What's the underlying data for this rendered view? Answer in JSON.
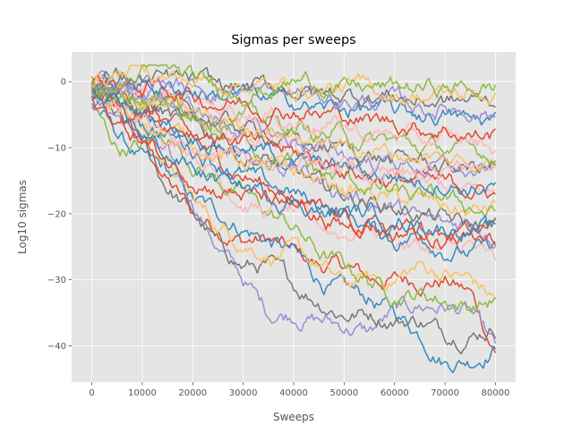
{
  "chart_data": {
    "type": "line",
    "title": "Sigmas per sweeps",
    "xlabel": "Sweeps",
    "ylabel": "Log10 sigmas",
    "xlim": [
      -4000,
      84000
    ],
    "ylim": [
      -45.5,
      4.5
    ],
    "x_ticks": [
      0,
      10000,
      20000,
      30000,
      40000,
      50000,
      60000,
      70000,
      80000
    ],
    "x_tick_labels": [
      "0",
      "10000",
      "20000",
      "30000",
      "40000",
      "50000",
      "60000",
      "70000",
      "80000"
    ],
    "y_ticks": [
      0,
      -10,
      -20,
      -30,
      -40
    ],
    "y_tick_labels": [
      "0",
      "−10",
      "−20",
      "−30",
      "−40"
    ],
    "grid": true,
    "style": "ggplot",
    "colors": [
      "#E24A33",
      "#348ABD",
      "#988ED5",
      "#777777",
      "#FBC15E",
      "#8EBA42",
      "#FFB5B8"
    ],
    "x": [
      0,
      5000,
      10000,
      15000,
      20000,
      25000,
      30000,
      35000,
      40000,
      45000,
      50000,
      55000,
      60000,
      65000,
      70000,
      75000,
      80000
    ],
    "series": [
      {
        "values": [
          -2,
          -5,
          -9,
          -15,
          -20,
          -22,
          -24,
          -24,
          -26,
          -28,
          -28,
          -30,
          -30,
          -30,
          -30,
          -32,
          -41
        ]
      },
      {
        "values": [
          -3,
          -8,
          -12,
          -14,
          -18,
          -20,
          -22,
          -24,
          -26,
          -30,
          -32,
          -33,
          -35,
          -38,
          -42,
          -42,
          -40
        ]
      },
      {
        "values": [
          -3,
          -5,
          -8,
          -12,
          -18,
          -25,
          -30,
          -35,
          -35,
          -36,
          -37,
          -38,
          -35,
          -34,
          -34,
          -35,
          -41
        ]
      },
      {
        "values": [
          -2,
          -6,
          -10,
          -16,
          -20,
          -25,
          -28,
          -28,
          -31,
          -33,
          -35,
          -35,
          -36,
          -36,
          -38,
          -38,
          -37
        ]
      },
      {
        "values": [
          -1,
          -3,
          -7,
          -12,
          -18,
          -22,
          -24,
          -26,
          -26,
          -28,
          -31,
          -30,
          -30,
          -28,
          -29,
          -30,
          -33
        ]
      },
      {
        "values": [
          -4,
          -10,
          -10,
          -8,
          -12,
          -15,
          -17,
          -20,
          -22,
          -26,
          -28,
          -30,
          -32,
          -32,
          -33,
          -34,
          -33
        ]
      },
      {
        "values": [
          -2,
          -4,
          -5,
          -8,
          -10,
          -14,
          -18,
          -20,
          -20,
          -22,
          -23,
          -22,
          -24,
          -25,
          -26,
          -25,
          -28
        ]
      },
      {
        "values": [
          -1,
          -2,
          -4,
          -6,
          -9,
          -12,
          -14,
          -16,
          -18,
          -20,
          -22,
          -21,
          -23,
          -22,
          -24,
          -23,
          -22
        ]
      },
      {
        "values": [
          -1,
          -3,
          -6,
          -8,
          -10,
          -12,
          -14,
          -16,
          -17,
          -19,
          -20,
          -22,
          -24,
          -23,
          -25,
          -26,
          -25
        ]
      },
      {
        "values": [
          0,
          -1,
          -2,
          -4,
          -6,
          -8,
          -10,
          -12,
          -13,
          -15,
          -17,
          -18,
          -19,
          -21,
          -22,
          -21,
          -23
        ]
      },
      {
        "values": [
          -1,
          -2,
          -3,
          -5,
          -7,
          -9,
          -11,
          -12,
          -14,
          -16,
          -17,
          -18,
          -19,
          -20,
          -21,
          -22,
          -22
        ]
      },
      {
        "values": [
          -2,
          -4,
          -6,
          -7,
          -9,
          -11,
          -12,
          -13,
          -14,
          -15,
          -16,
          -17,
          -18,
          -18,
          -19,
          -20,
          -19
        ]
      },
      {
        "values": [
          -1,
          -2,
          -4,
          -5,
          -7,
          -8,
          -9,
          -11,
          -12,
          -14,
          -15,
          -16,
          -17,
          -18,
          -18,
          -19,
          -20
        ]
      },
      {
        "values": [
          0,
          -1,
          -2,
          -3,
          -5,
          -7,
          -8,
          -10,
          -11,
          -12,
          -13,
          -14,
          -15,
          -16,
          -16,
          -17,
          -17
        ]
      },
      {
        "values": [
          -1,
          -3,
          -4,
          -6,
          -7,
          -8,
          -9,
          -10,
          -11,
          -12,
          -13,
          -14,
          -15,
          -15,
          -16,
          -16,
          -17
        ]
      },
      {
        "values": [
          -2,
          -3,
          -5,
          -6,
          -8,
          -9,
          -10,
          -11,
          -12,
          -13,
          -13,
          -14,
          -14,
          -15,
          -15,
          -16,
          -16
        ]
      },
      {
        "values": [
          0,
          -1,
          -2,
          -3,
          -4,
          -6,
          -7,
          -8,
          -9,
          -10,
          -11,
          -12,
          -12,
          -13,
          -13,
          -14,
          -14
        ]
      },
      {
        "values": [
          -1,
          -2,
          -3,
          -4,
          -5,
          -6,
          -7,
          -8,
          -9,
          -10,
          -10,
          -11,
          -12,
          -12,
          -13,
          -13,
          -13
        ]
      },
      {
        "values": [
          -1,
          -2,
          -3,
          -4,
          -5,
          -6,
          -6,
          -7,
          -8,
          -9,
          -10,
          -10,
          -11,
          -11,
          -12,
          -12,
          -12
        ]
      },
      {
        "values": [
          0,
          -1,
          -2,
          -3,
          -4,
          -5,
          -5,
          -6,
          -7,
          -8,
          -8,
          -9,
          -9,
          -10,
          -10,
          -11,
          -11
        ]
      },
      {
        "values": [
          0,
          0,
          -1,
          -2,
          -3,
          -4,
          -4,
          -5,
          -6,
          -6,
          -7,
          -8,
          -8,
          -9,
          -9,
          -9,
          -10
        ]
      },
      {
        "values": [
          0,
          0,
          -1,
          -1,
          -2,
          -3,
          -3,
          -4,
          -4,
          -5,
          -5,
          -6,
          -6,
          -7,
          -7,
          -8,
          -8
        ]
      },
      {
        "values": [
          0,
          0,
          0,
          -1,
          -1,
          -2,
          -2,
          -3,
          -3,
          -4,
          -4,
          -4,
          -5,
          -5,
          -5,
          -6,
          -6
        ]
      },
      {
        "values": [
          0,
          0,
          0,
          0,
          -1,
          -1,
          -1,
          -2,
          -2,
          -2,
          -3,
          -3,
          -3,
          -4,
          -4,
          -4,
          -5
        ]
      },
      {
        "values": [
          0,
          1,
          0,
          0,
          0,
          -1,
          -1,
          -1,
          -1,
          -2,
          -2,
          -2,
          -2,
          -3,
          -3,
          -3,
          -3
        ]
      },
      {
        "values": [
          0,
          1,
          2,
          1,
          0,
          0,
          0,
          -1,
          -1,
          -1,
          -1,
          -1,
          -2,
          -2,
          -2,
          -2,
          -2
        ]
      },
      {
        "values": [
          -1,
          -1,
          1,
          2,
          0,
          -1,
          -1,
          -1,
          0,
          0,
          -1,
          -1,
          -1,
          -1,
          -1,
          -1,
          -1
        ]
      },
      {
        "values": [
          -2,
          -4,
          -6,
          -8,
          -10,
          -10,
          -11,
          -12,
          -11,
          -12,
          -12,
          -13,
          -13,
          -14,
          -14,
          -13,
          -14
        ]
      },
      {
        "values": [
          -3,
          -6,
          -9,
          -12,
          -14,
          -16,
          -17,
          -18,
          -19,
          -20,
          -21,
          -22,
          -22,
          -23,
          -24,
          -24,
          -25
        ]
      },
      {
        "values": [
          -2,
          -5,
          -8,
          -11,
          -13,
          -15,
          -16,
          -17,
          -18,
          -19,
          -20,
          -20,
          -21,
          -21,
          -22,
          -22,
          -23
        ]
      }
    ]
  }
}
